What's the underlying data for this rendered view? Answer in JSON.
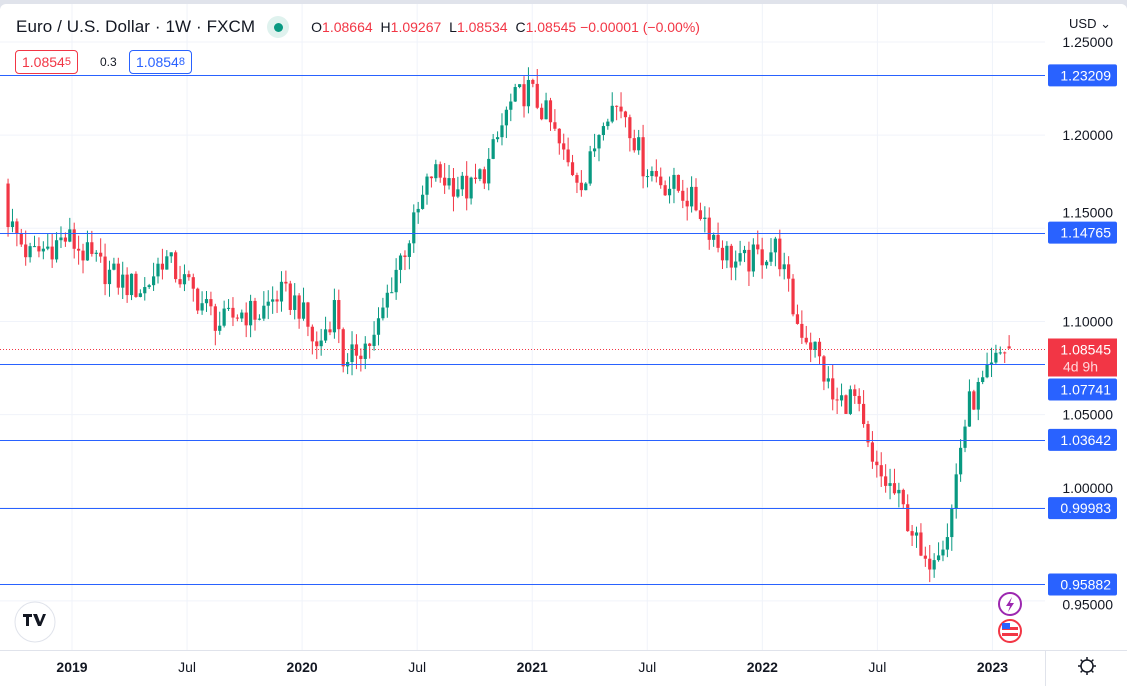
{
  "header": {
    "symbol_title": "Euro / U.S. Dollar · 1W · FXCM",
    "ohlc": {
      "o_label": "O",
      "o": "1.08664",
      "h_label": "H",
      "h": "1.09267",
      "l_label": "L",
      "l": "1.08534",
      "c_label": "C",
      "c": "1.08545",
      "change": "−0.00001 (−0.00%)"
    },
    "sell_price_main": "1.0854",
    "sell_price_pip": "5",
    "spread": "0.3",
    "buy_price_main": "1.0854",
    "buy_price_pip": "8",
    "currency": "USD"
  },
  "colors": {
    "up": "#089981",
    "down": "#f23645",
    "line": "#2962ff",
    "grid": "#f0f3fa",
    "text": "#131722"
  },
  "chart_data": {
    "type": "candlestick",
    "title": "Euro / U.S. Dollar · 1W · FXCM",
    "ylim": [
      0.93,
      1.27
    ],
    "y_ticks": [
      "1.25000",
      "1.20000",
      "1.15000",
      "1.10000",
      "1.05000",
      "1.00000",
      "0.95000"
    ],
    "x_ticks": [
      {
        "label": "2019",
        "year": 2019,
        "month": 1,
        "bold": true
      },
      {
        "label": "Jul",
        "year": 2019,
        "month": 7,
        "bold": false
      },
      {
        "label": "2020",
        "year": 2020,
        "month": 1,
        "bold": true
      },
      {
        "label": "Jul",
        "year": 2020,
        "month": 7,
        "bold": false
      },
      {
        "label": "2021",
        "year": 2021,
        "month": 1,
        "bold": true
      },
      {
        "label": "Jul",
        "year": 2021,
        "month": 7,
        "bold": false
      },
      {
        "label": "2022",
        "year": 2022,
        "month": 1,
        "bold": true
      },
      {
        "label": "Jul",
        "year": 2022,
        "month": 7,
        "bold": false
      },
      {
        "label": "2023",
        "year": 2023,
        "month": 1,
        "bold": true
      }
    ],
    "weekly_close_path": [
      [
        2018,
        9.5,
        1.17
      ],
      [
        2018,
        10,
        1.152
      ],
      [
        2018,
        11,
        1.135
      ],
      [
        2018,
        12,
        1.14
      ],
      [
        2019,
        1,
        1.145
      ],
      [
        2019,
        2,
        1.135
      ],
      [
        2019,
        3,
        1.127
      ],
      [
        2019,
        4,
        1.12
      ],
      [
        2019,
        5,
        1.117
      ],
      [
        2019,
        6,
        1.135
      ],
      [
        2019,
        7,
        1.122
      ],
      [
        2019,
        8,
        1.11
      ],
      [
        2019,
        9,
        1.098
      ],
      [
        2019,
        10,
        1.105
      ],
      [
        2019,
        11,
        1.104
      ],
      [
        2019,
        12,
        1.115
      ],
      [
        2020,
        1,
        1.11
      ],
      [
        2020,
        2,
        1.085
      ],
      [
        2020,
        3,
        1.11
      ],
      [
        2020,
        3.5,
        1.07
      ],
      [
        2020,
        4,
        1.085
      ],
      [
        2020,
        5,
        1.09
      ],
      [
        2020,
        6,
        1.125
      ],
      [
        2020,
        7,
        1.15
      ],
      [
        2020,
        8,
        1.18
      ],
      [
        2020,
        9,
        1.175
      ],
      [
        2020,
        10,
        1.17
      ],
      [
        2020,
        11,
        1.185
      ],
      [
        2020,
        12,
        1.215
      ],
      [
        2021,
        1,
        1.225
      ],
      [
        2021,
        2,
        1.21
      ],
      [
        2021,
        3,
        1.185
      ],
      [
        2021,
        4,
        1.175
      ],
      [
        2021,
        5,
        1.215
      ],
      [
        2021,
        6,
        1.215
      ],
      [
        2021,
        7,
        1.185
      ],
      [
        2021,
        8,
        1.175
      ],
      [
        2021,
        9,
        1.17
      ],
      [
        2021,
        10,
        1.16
      ],
      [
        2021,
        11,
        1.14
      ],
      [
        2021,
        12,
        1.13
      ],
      [
        2022,
        1,
        1.135
      ],
      [
        2022,
        2,
        1.14
      ],
      [
        2022,
        3,
        1.1
      ],
      [
        2022,
        4,
        1.085
      ],
      [
        2022,
        5,
        1.055
      ],
      [
        2022,
        6,
        1.06
      ],
      [
        2022,
        7,
        1.02
      ],
      [
        2022,
        8,
        1.01
      ],
      [
        2022,
        9,
        0.99
      ],
      [
        2022,
        9.7,
        0.965
      ],
      [
        2022,
        10,
        0.975
      ],
      [
        2022,
        11,
        0.99
      ],
      [
        2022,
        11.5,
        1.03
      ],
      [
        2022,
        12,
        1.055
      ],
      [
        2023,
        1,
        1.07
      ],
      [
        2023,
        1.8,
        1.085
      ]
    ],
    "last_candle": {
      "open": 1.08664,
      "high": 1.09267,
      "low": 1.08534,
      "close": 1.08545
    },
    "horizontal_lines": [
      "1.23209",
      "1.14765",
      "1.07741",
      "1.03642",
      "0.99983",
      "0.95882"
    ],
    "current_price": {
      "value": "1.08545",
      "countdown": "4d 9h"
    }
  }
}
